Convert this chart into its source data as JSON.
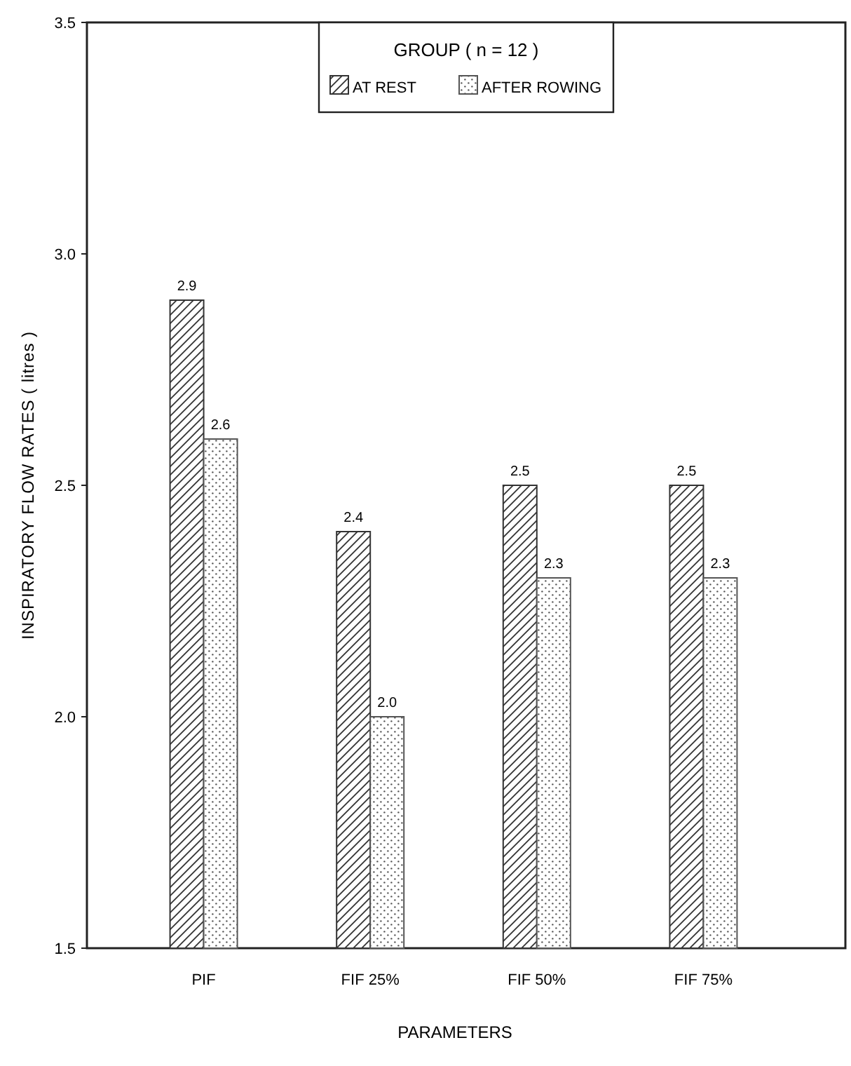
{
  "chart_data": {
    "type": "bar",
    "xlabel": "PARAMETERS",
    "ylabel": "INSPIRATORY FLOW RATES ( litres )",
    "legend_title": "GROUP ( n = 12 )",
    "legend": "top",
    "categories": [
      "PIF",
      "FIF 25%",
      "FIF 50%",
      "FIF 75%"
    ],
    "series": [
      {
        "name": "AT REST",
        "color": "#333333",
        "values": [
          2.9,
          2.4,
          2.5,
          2.5
        ],
        "value_labels": [
          "2.9",
          "2.4",
          "2.5",
          "2.5"
        ]
      },
      {
        "name": "AFTER ROWING",
        "color": "#555555",
        "values": [
          2.6,
          2.0,
          2.3,
          2.3
        ],
        "value_labels": [
          "2.6",
          "2.0",
          "2.3",
          "2.3"
        ]
      }
    ],
    "ylim": [
      1.5,
      3.5
    ],
    "yticks": [
      {
        "value": 1.5,
        "label": "1.5"
      },
      {
        "value": 2,
        "label": "2.0"
      },
      {
        "value": 2.5,
        "label": "2.5"
      },
      {
        "value": 3,
        "label": "3.0"
      },
      {
        "value": 3.5,
        "label": "3.5"
      }
    ]
  }
}
